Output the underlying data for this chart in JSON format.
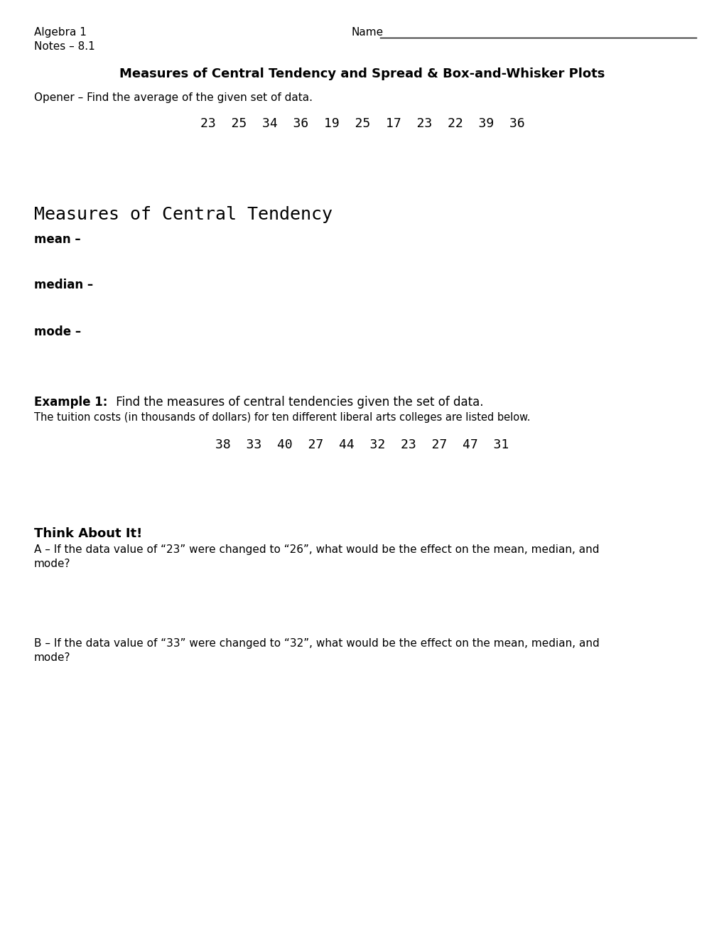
{
  "bg_color": "#ffffff",
  "top_left_line1": "Algebra 1",
  "top_left_line2": "Notes – 8.1",
  "top_right_name": "Name",
  "title": "Measures of Central Tendency and Spread & Box-and-Whisker Plots",
  "opener_label": "Opener – Find the average of the given set of data.",
  "opener_data": "23  25  34  36  19  25  17  23  22  39  36",
  "mct_heading": "Measures of Central Tendency",
  "mean_label": "mean –",
  "median_label": "median –",
  "mode_label": "mode –",
  "example1_bold": "Example 1:",
  "example1_rest": " Find the measures of central tendencies given the set of data.",
  "example1_sub": "The tuition costs (in thousands of dollars) for ten different liberal arts colleges are listed below.",
  "example1_data": "38  33  40  27  44  32  23  27  47  31",
  "think_bold": "Think About It!",
  "thinkA": "A – If the data value of “23” were changed to “26”, what would be the effect on the mean, median, and\nmode?",
  "thinkB": "B – If the data value of “33” were changed to “32”, what would be the effect on the mean, median, and\nmode?"
}
